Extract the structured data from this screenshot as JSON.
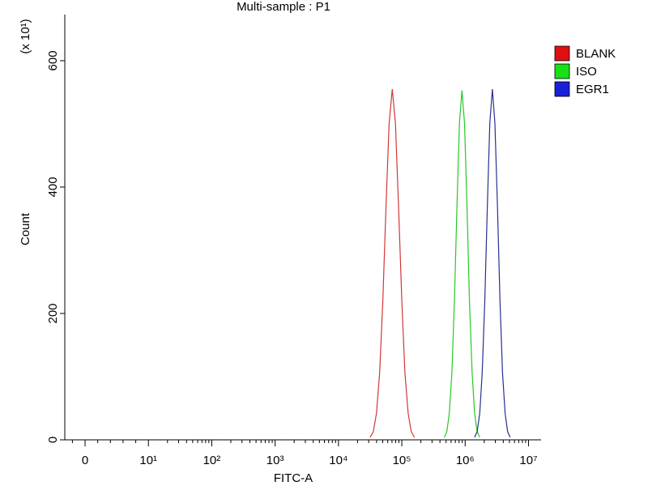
{
  "chart_data": {
    "type": "histogram-overlay",
    "title": "Multi-sample : P1",
    "x_label": "FITC-A",
    "y_label": "Count",
    "y_multiplier_label": "(x 10¹)",
    "xscale": "symlog",
    "xlim": [
      -3.2,
      15800000
    ],
    "xticks": [
      0,
      {
        "value": 10,
        "label": "10¹"
      },
      {
        "value": 100,
        "label": "10²"
      },
      {
        "value": 1000,
        "label": "10³"
      },
      {
        "value": 10000,
        "label": "10⁴"
      },
      {
        "value": 100000,
        "label": "10⁵"
      },
      {
        "value": 1000000,
        "label": "10⁶"
      },
      {
        "value": 10000000,
        "label": "10⁷"
      }
    ],
    "ylim": [
      0,
      673
    ],
    "yticks": [
      0,
      200,
      400,
      600
    ],
    "series": [
      {
        "name": "BLANK",
        "color": "#e01010",
        "line_color": "#d03838",
        "x": [
          31600,
          35500,
          39800,
          44700,
          50100,
          56200,
          63100,
          70800,
          79400,
          89100,
          100000,
          112000,
          126000,
          141000,
          158000
        ],
        "values": [
          4,
          13,
          42,
          106,
          219,
          367,
          501,
          555,
          501,
          367,
          219,
          106,
          42,
          13,
          4
        ]
      },
      {
        "name": "ISO",
        "color": "#18e018",
        "line_color": "#28c828",
        "x": [
          468000,
          513000,
          562000,
          617000,
          676000,
          741000,
          813000,
          891000,
          977000,
          1070000,
          1170000,
          1290000,
          1410000,
          1550000,
          1700000
        ],
        "values": [
          4,
          13,
          42,
          106,
          219,
          367,
          501,
          553,
          501,
          367,
          219,
          106,
          42,
          13,
          4
        ]
      },
      {
        "name": "EGR1",
        "color": "#1820d8",
        "line_color": "#283090",
        "x": [
          1410000,
          1550000,
          1700000,
          1860000,
          2040000,
          2240000,
          2450000,
          2690000,
          2950000,
          3240000,
          3550000,
          3890000,
          4270000,
          4680000,
          5130000
        ],
        "values": [
          4,
          13,
          42,
          106,
          219,
          367,
          501,
          555,
          501,
          367,
          219,
          106,
          42,
          13,
          4
        ]
      }
    ]
  }
}
